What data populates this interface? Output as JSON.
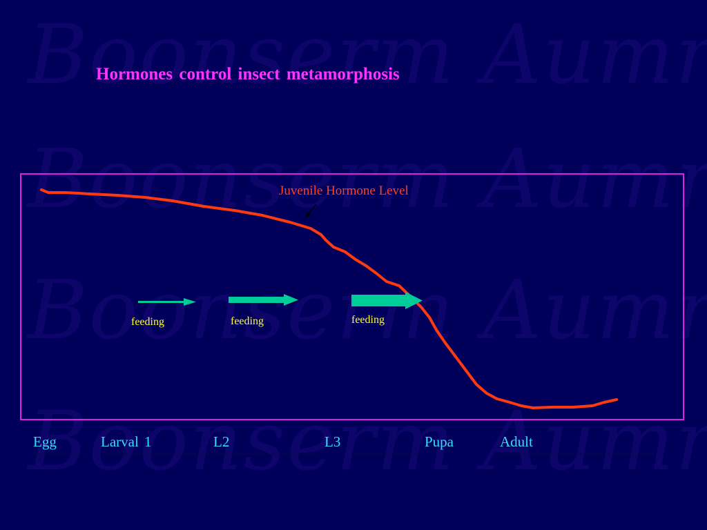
{
  "slide": {
    "title": "Hormones control insect metamorphosis",
    "watermark_text": "Boonserm Aumnaung",
    "colors": {
      "background": "#00005a",
      "title": "#ff33ff",
      "frame": "#e020e0",
      "curve": "#ff3a10",
      "curve_label": "#ff4020",
      "arrow": "#00cc99",
      "feeding_label": "#ffff33",
      "stage_label": "#33ddff"
    }
  },
  "diagram": {
    "curve_label": "Juvenile Hormone Level",
    "feeding_arrows": [
      {
        "label": "feeding",
        "weight": "thin"
      },
      {
        "label": "feeding",
        "weight": "medium"
      },
      {
        "label": "feeding",
        "weight": "thick"
      }
    ],
    "stages": [
      "Egg",
      "Larval 1",
      "L2",
      "L3",
      "Pupa",
      "Adult"
    ]
  }
}
